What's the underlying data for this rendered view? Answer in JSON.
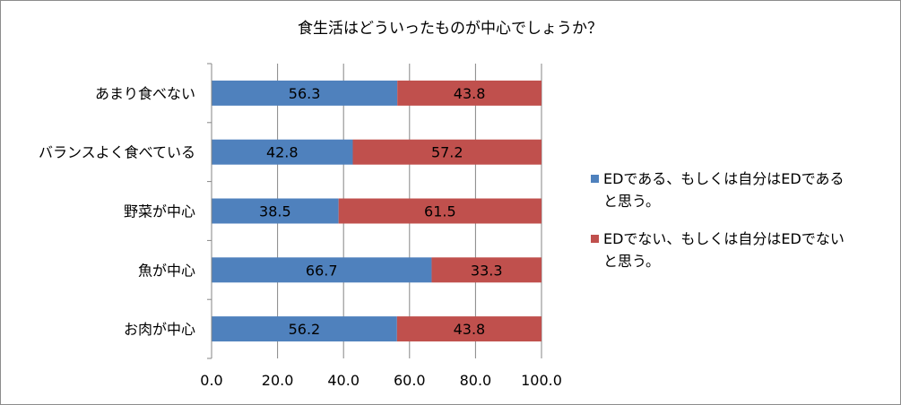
{
  "chart_data": {
    "type": "bar",
    "orientation": "horizontal",
    "stacked": true,
    "title": "食生活はどういったものが中心でしょうか？",
    "categories": [
      "あまり食べない",
      "バランスよく食べている",
      "野菜が中心",
      "魚が中心",
      "お肉が中心"
    ],
    "series": [
      {
        "name": "EDである、もしくは自分はEDであると思う。",
        "legend_lines": [
          "EDである、もしくは自分はEDである",
          "と思う。"
        ],
        "color": "#4f81bd",
        "values": [
          56.3,
          42.8,
          38.5,
          66.7,
          56.2
        ],
        "labels": [
          "56.3",
          "42.8",
          "38.5",
          "66.7",
          "56.2"
        ]
      },
      {
        "name": "EDでない、もしくは自分はEDでないと思う。",
        "legend_lines": [
          "EDでない、もしくは自分はEDでない",
          "と思う。"
        ],
        "color": "#c0504d",
        "values": [
          43.8,
          57.2,
          61.5,
          33.3,
          43.8
        ],
        "labels": [
          "43.8",
          "57.2",
          "61.5",
          "33.3",
          "43.8"
        ]
      }
    ],
    "xlim": [
      0,
      100
    ],
    "xticks": [
      "0.0",
      "20.0",
      "40.0",
      "60.0",
      "80.0",
      "100.0"
    ],
    "legend_position": "right",
    "grid": true
  }
}
